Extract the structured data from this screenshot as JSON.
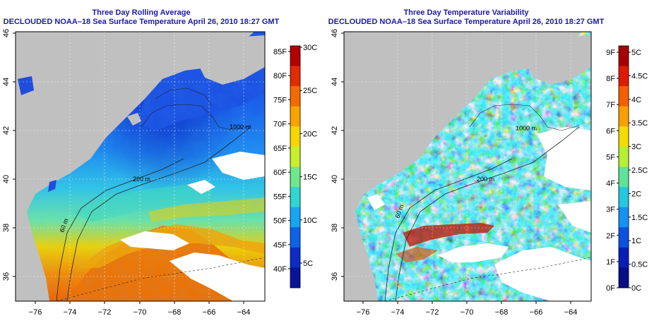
{
  "left_panel": {
    "title_line1": "Three Day Rolling Average",
    "title_line2": "DECLOUDED NOAA–18 Sea Surface Temperature April 26, 2010 18:27 GMT",
    "colorbar": {
      "f_labels": [
        "85F",
        "80F",
        "75F",
        "70F",
        "65F",
        "60F",
        "55F",
        "50F",
        "45F",
        "40F"
      ],
      "c_labels": [
        "30C",
        "25C",
        "20C",
        "15C",
        "10C",
        "5C"
      ],
      "colors": [
        "#b40000",
        "#e32b00",
        "#f56a00",
        "#f8a300",
        "#f6d700",
        "#c8ef2a",
        "#6ee88a",
        "#2fd6d2",
        "#16a6f2",
        "#0d63e8",
        "#0b2cc8",
        "#08149a"
      ]
    },
    "contour_labels": [
      "1000 m",
      "200 m",
      "60 m"
    ]
  },
  "right_panel": {
    "title_line1": "Three Day Temperature Variability",
    "title_line2": "DECLOUDED NOAA–18 Sea Surface Temperature April 26, 2010 18:27 GMT",
    "colorbar": {
      "f_labels": [
        "9F",
        "8F",
        "7F",
        "6F",
        "5F",
        "4F",
        "3F",
        "2F",
        "1F",
        "0F"
      ],
      "c_labels": [
        "5C",
        "4.5C",
        "4C",
        "3.5C",
        "3C",
        "2.5C",
        "2C",
        "1.5C",
        "1C",
        "0.5C",
        "0C"
      ],
      "colors": [
        "#a80000",
        "#e01a00",
        "#f55f00",
        "#f8a000",
        "#f2dd00",
        "#b6f034",
        "#5fe39a",
        "#26c8e0",
        "#1592f2",
        "#0b52e2",
        "#081eb6",
        "#070e86"
      ]
    },
    "contour_labels": [
      "200 m",
      "1000 m",
      "60 m"
    ]
  },
  "lon_ticks": [
    "−76",
    "−74",
    "−72",
    "−70",
    "−68",
    "−66",
    "−64"
  ],
  "lat_ticks": [
    "46",
    "44",
    "42",
    "40",
    "38",
    "36"
  ],
  "colors": {
    "land": "#c0c0c0",
    "title": "#1a1aa6",
    "cloud": "#ffffff"
  }
}
